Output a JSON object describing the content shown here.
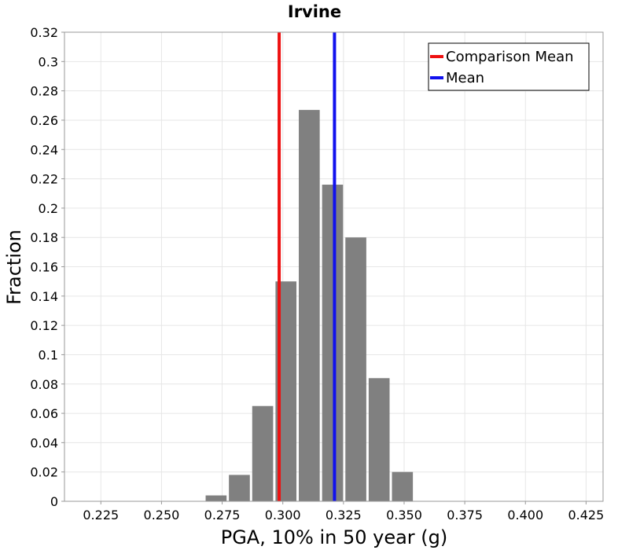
{
  "chart_data": {
    "type": "bar",
    "title": "Irvine",
    "xlabel": "PGA, 10% in 50 year (g)",
    "ylabel": "Fraction",
    "xlim": [
      0.21,
      0.432
    ],
    "ylim": [
      0,
      0.32
    ],
    "grid": true,
    "legend_position": "top-right",
    "bin_width": 0.0096,
    "x_ticks": [
      "0.225",
      "0.250",
      "0.275",
      "0.300",
      "0.325",
      "0.350",
      "0.375",
      "0.400",
      "0.425"
    ],
    "y_ticks": [
      "0",
      "0.02",
      "0.04",
      "0.06",
      "0.08",
      "0.1",
      "0.12",
      "0.14",
      "0.16",
      "0.18",
      "0.2",
      "0.22",
      "0.24",
      "0.26",
      "0.28",
      "0.3",
      "0.32"
    ],
    "bars": [
      {
        "x": 0.2725,
        "value": 0.004
      },
      {
        "x": 0.2821,
        "value": 0.018
      },
      {
        "x": 0.2917,
        "value": 0.065
      },
      {
        "x": 0.3013,
        "value": 0.15
      },
      {
        "x": 0.3109,
        "value": 0.267
      },
      {
        "x": 0.3205,
        "value": 0.216
      },
      {
        "x": 0.3301,
        "value": 0.18
      },
      {
        "x": 0.3397,
        "value": 0.084
      },
      {
        "x": 0.3493,
        "value": 0.02
      }
    ],
    "lines": [
      {
        "name": "Comparison Mean",
        "x": 0.2985,
        "color": "#ee1111"
      },
      {
        "name": "Mean",
        "x": 0.3213,
        "color": "#1111ee"
      }
    ],
    "bar_color": "#808080"
  }
}
